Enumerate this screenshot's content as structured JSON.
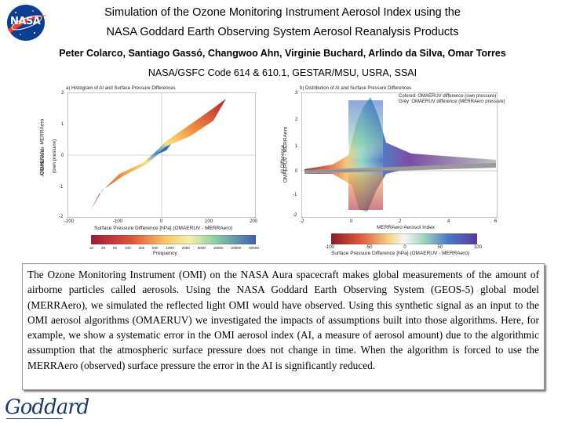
{
  "header": {
    "logo_text": "NASA",
    "title_line1": "Simulation of the Ozone Monitoring Instrument Aerosol Index using the",
    "title_line2": "NASA Goddard Earth Observing System Aerosol Reanalysis Products",
    "authors": "Peter Colarco, Santiago Gassó, Changwoo Ahn, Virginie Buchard, Arlindo da Silva, Omar Torres",
    "affiliation": "NASA/GSFC Code 614 & 610.1, GESTAR/MSU, USRA, SSAI"
  },
  "figure_left": {
    "title": "a) Histogram of AI and Surface Pressure Differences",
    "ylabel": "OMAERUV - MERRAero",
    "ylabel2": "AI Difference",
    "ylabel3": "(own pressure)",
    "xlabel": "Surface Pressure Difference [hPa] (OMAERUV - MERRAero)",
    "x_ticks": [
      "-200",
      "-100",
      "0",
      "100",
      "200"
    ],
    "y_ticks": [
      "2",
      "1",
      "0",
      "-1",
      "-2"
    ],
    "colorbar_ticks": [
      "10",
      "20",
      "50",
      "100",
      "200",
      "500",
      "1000",
      "2000",
      "5000",
      "10000",
      "20000",
      "50000"
    ],
    "colorbar_label": "Frequency"
  },
  "figure_right": {
    "title": "b) Distribution of AI and Surface Pressure Differences",
    "legend_colored": "Colored: OMAERUV difference (own pressure)",
    "legend_grey": "Grey: OMAERUV difference (MERRAero pressure)",
    "ylabel": "OMAERUV - MERRAero",
    "ylabel2": "AI Difference",
    "xlabel": "MERRAero Aerosol Index",
    "x_ticks": [
      "-2",
      "0",
      "2",
      "4",
      "6"
    ],
    "y_ticks": [
      "3",
      "2",
      "1",
      "0",
      "-1",
      "-2"
    ],
    "colorbar_ticks": [
      "-100",
      "-50",
      "0",
      "50",
      "100"
    ],
    "colorbar_label": "Surface Pressure Difference [hPa] (OMAERUV - MERRAero)"
  },
  "summary": "The Ozone Monitoring Instrument (OMI) on the NASA Aura spacecraft makes global measurements of the amount of airborne particles called aerosols. Using the NASA Goddard Earth Observing System (GEOS-5) global model (MERRAero), we simulated the reflected light OMI would have observed. Using this synthetic signal as an input to the OMI aerosol algorithms (OMAERUV) we investigated the impacts of assumptions built into those algorithms. Here, for example, we show a systematic error in the OMI aerosol index (AI, a measure of aerosol amount) due to the algorithmic assumption that the atmospheric surface pressure does not change in time. When the algorithm is forced to use the MERRAero (observed) surface pressure the error in the AI is significantly reduced.",
  "footer": {
    "logo_text": "Goddard"
  }
}
